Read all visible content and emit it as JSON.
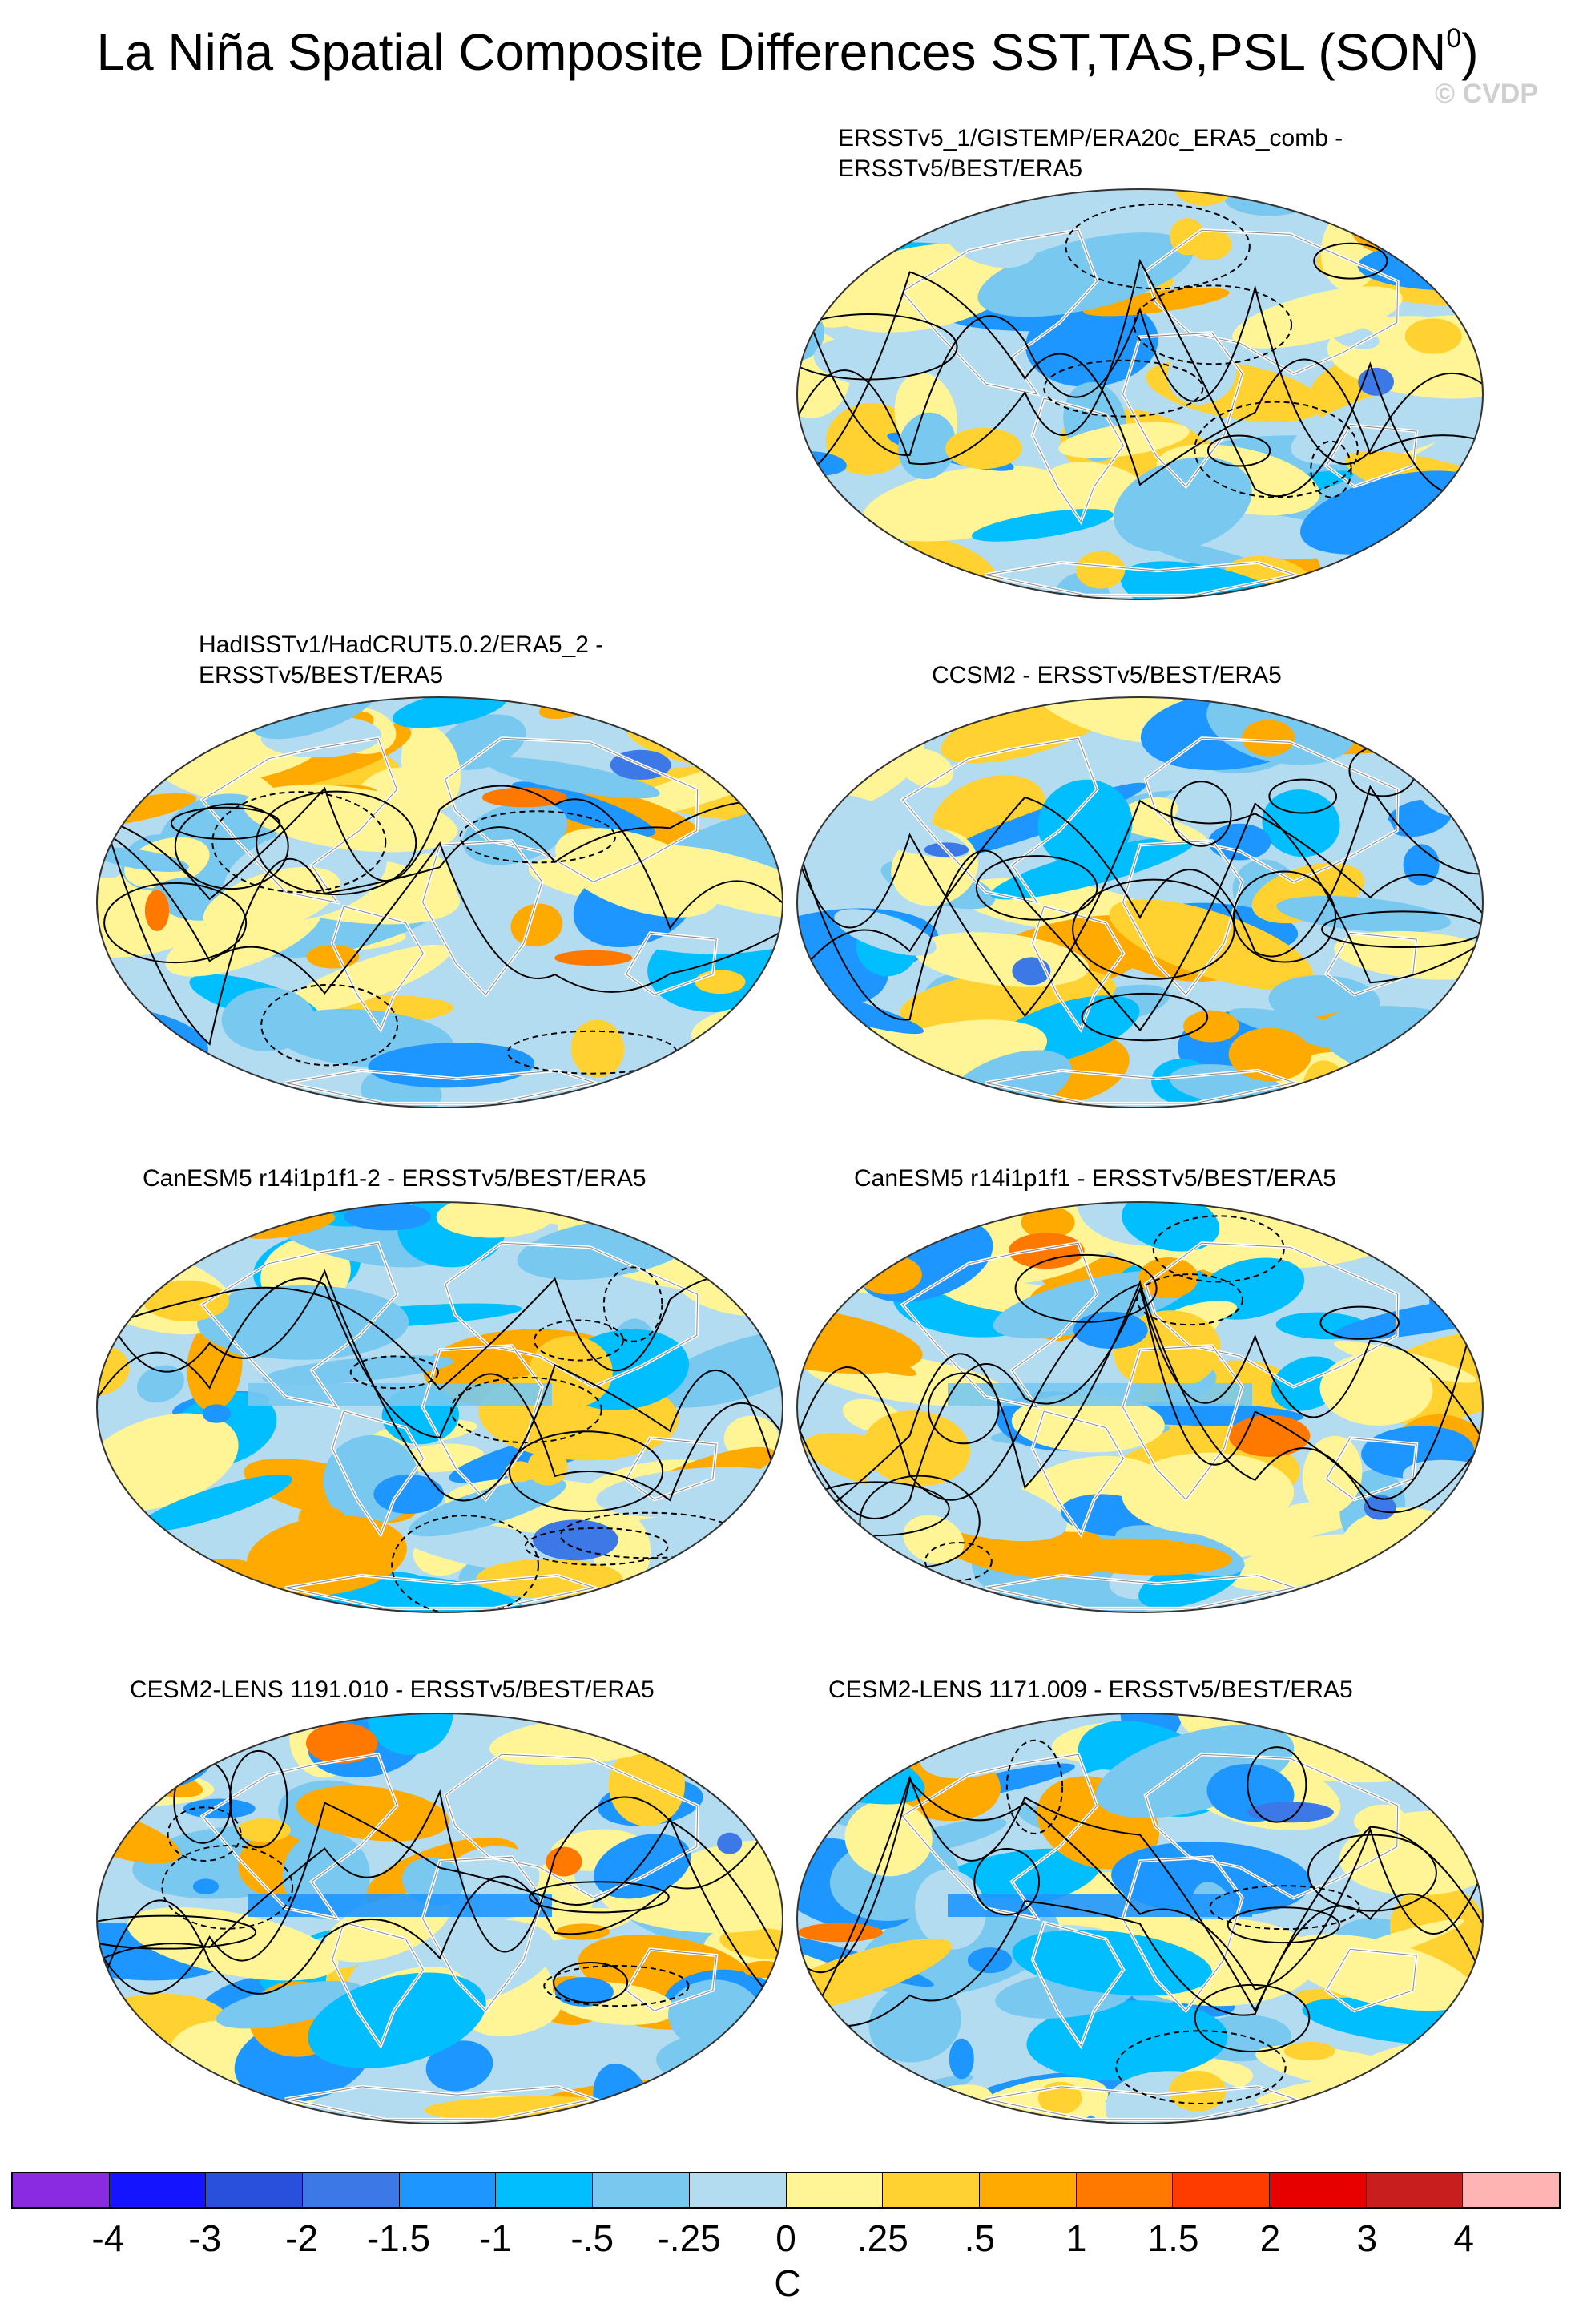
{
  "title_main": "La Niña Spatial Composite Differences SST,TAS,PSL (SON",
  "title_sup": "0",
  "title_end": ")",
  "credit": "© CVDP",
  "panels": [
    {
      "id": "p1",
      "line1": "ERSSTv5_1/GISTEMP/ERA20c_ERA5_comb -",
      "line2": "ERSSTv5/BEST/ERA5",
      "seed": 3
    },
    {
      "id": "p2",
      "line1": "HadISSTv1/HadCRUT5.0.2/ERA5_2 -",
      "line2": "ERSSTv5/BEST/ERA5",
      "seed": 7
    },
    {
      "id": "p3",
      "line1": "CCSM2 - ERSSTv5/BEST/ERA5",
      "line2": "",
      "seed": 11
    },
    {
      "id": "p4",
      "line1": "CanESM5 r14i1p1f1-2 - ERSSTv5/BEST/ERA5",
      "line2": "",
      "seed": 17
    },
    {
      "id": "p5",
      "line1": "CanESM5 r14i1p1f1 - ERSSTv5/BEST/ERA5",
      "line2": "",
      "seed": 19
    },
    {
      "id": "p6",
      "line1": "CESM2-LENS 1191.010 - ERSSTv5/BEST/ERA5",
      "line2": "",
      "seed": 23
    },
    {
      "id": "p7",
      "line1": "CESM2-LENS 1171.009 - ERSSTv5/BEST/ERA5",
      "line2": "",
      "seed": 29
    }
  ],
  "colorbar": {
    "colors": [
      "#8a2be2",
      "#1414ff",
      "#2850dc",
      "#3c78e6",
      "#1e96ff",
      "#00beff",
      "#78c8f0",
      "#b4dcf0",
      "#fff596",
      "#ffd232",
      "#ffaa00",
      "#ff7800",
      "#ff3c00",
      "#e60000",
      "#c81e1e",
      "#ffb4b4"
    ],
    "tick_labels": [
      "-4",
      "-3",
      "-2",
      "-1.5",
      "-1",
      "-.5",
      "-.25",
      "0",
      ".25",
      ".5",
      "1",
      "1.5",
      "2",
      "3",
      "4"
    ],
    "units": "C"
  },
  "chart_data": {
    "type": "heatmap",
    "title": "La Niña Spatial Composite Differences SST,TAS,PSL (SON0)",
    "variable": "SST,TAS,PSL composite difference",
    "units": "C",
    "levels": [
      -4,
      -3,
      -2,
      -1.5,
      -1,
      -0.5,
      -0.25,
      0,
      0.25,
      0.5,
      1,
      1.5,
      2,
      3,
      4
    ],
    "projection": "global ellipse (Robinson-like)",
    "panels": [
      "ERSSTv5_1/GISTEMP/ERA20c_ERA5_comb - ERSSTv5/BEST/ERA5",
      "HadISSTv1/HadCRUT5.0.2/ERA5_2 - ERSSTv5/BEST/ERA5",
      "CCSM2 - ERSSTv5/BEST/ERA5",
      "CanESM5 r14i1p1f1-2 - ERSSTv5/BEST/ERA5",
      "CanESM5 r14i1p1f1 - ERSSTv5/BEST/ERA5",
      "CESM2-LENS 1191.010 - ERSSTv5/BEST/ERA5",
      "CESM2-LENS 1171.009 - ERSSTv5/BEST/ERA5"
    ]
  }
}
